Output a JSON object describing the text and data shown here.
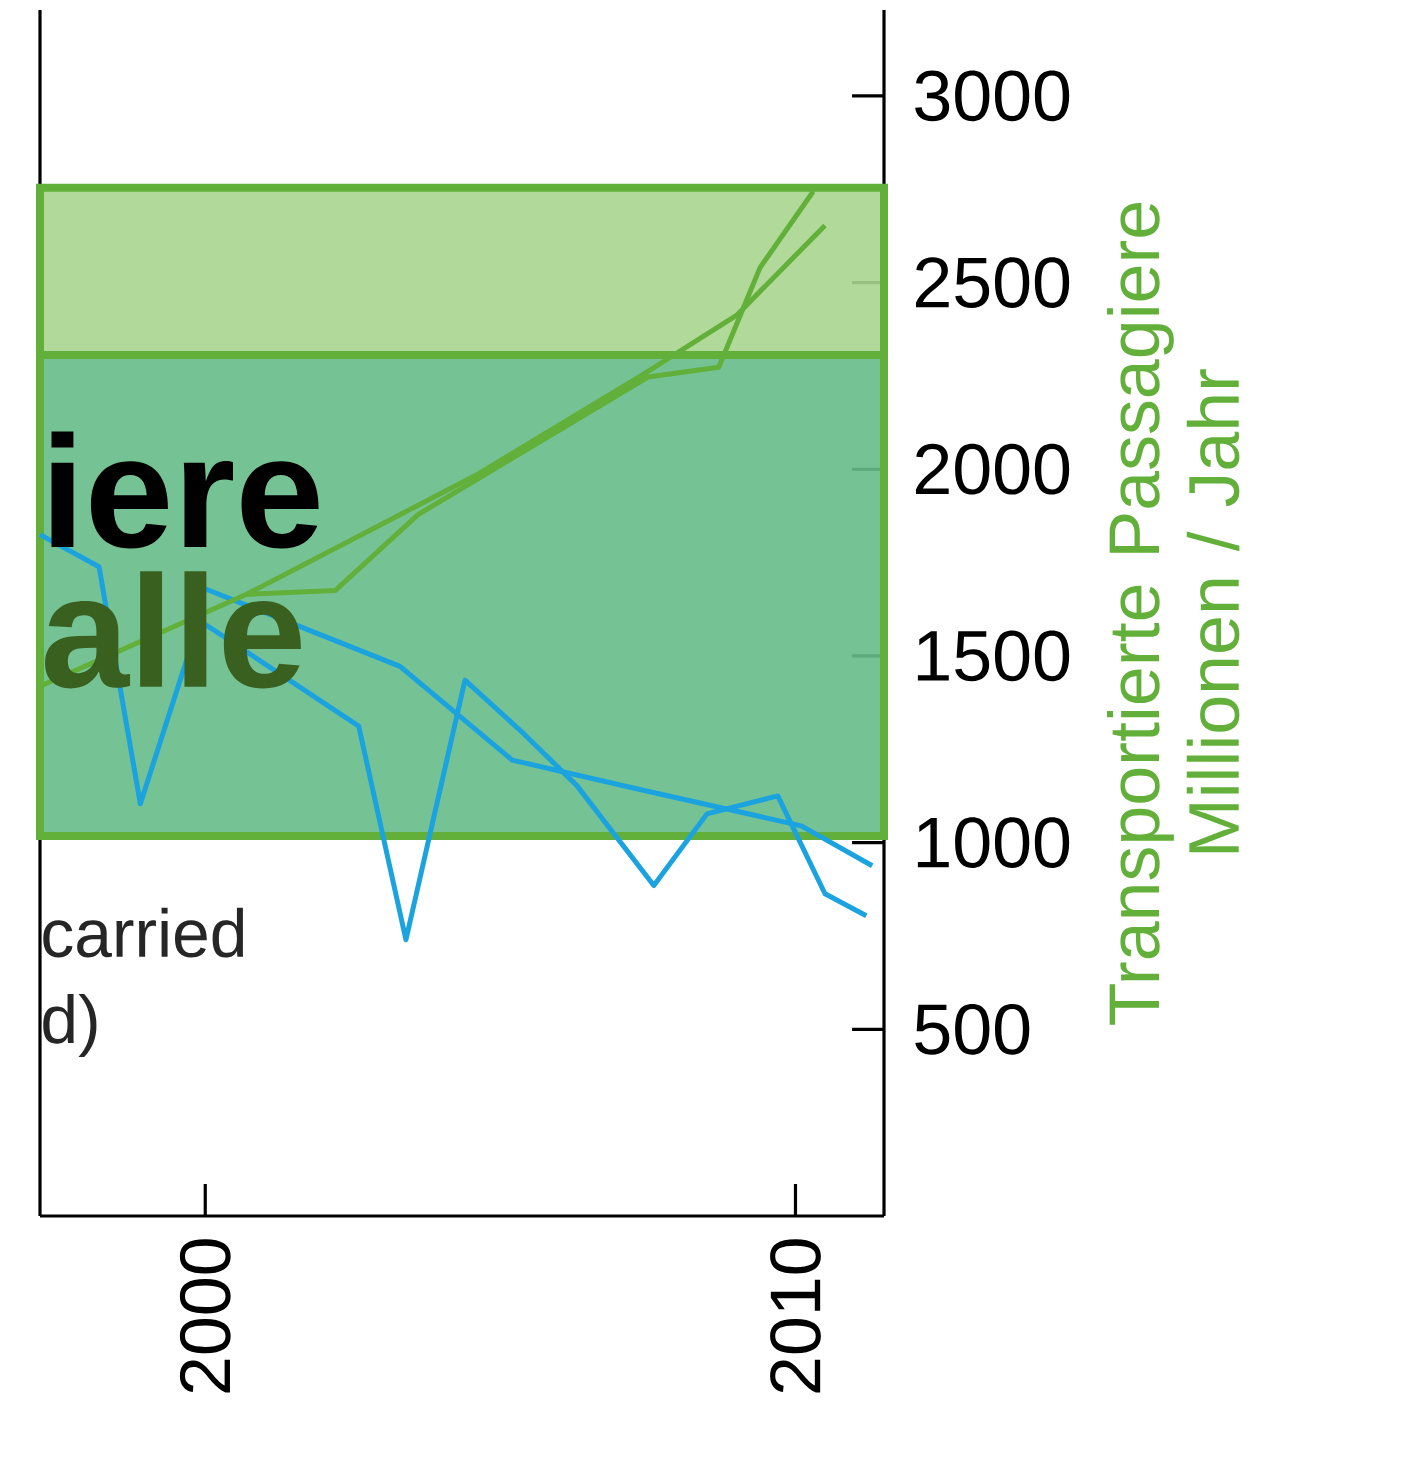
{
  "chart_data": {
    "type": "line",
    "y2label": "Transportierte Passagiere Millionen / Jahr",
    "xlim": [
      1997.2,
      2011.5
    ],
    "xticks": [
      2000,
      2010
    ],
    "y2lim": [
      0,
      3230
    ],
    "y2ticks": [
      500,
      1000,
      1500,
      2000,
      2500,
      3000
    ],
    "series": [
      {
        "color": "#1ba3e0",
        "axis": "y2",
        "x": [
          1997.2,
          1998.2,
          1998.9,
          1999.9,
          2002.6,
          2003.4,
          2004.4,
          2005.4,
          2006.3,
          2007.6,
          2008.5,
          2009.7,
          2010.5,
          2011.2
        ],
        "values": [
          1825,
          1739,
          1104,
          1595,
          1312,
          740,
          1435,
          1291,
          1152,
          885,
          1077,
          1125,
          863,
          804
        ]
      },
      {
        "color": "#1ba3e0",
        "axis": "y2",
        "x": [
          1999.9,
          2003.3,
          2005.2,
          2007.4,
          2010.1,
          2011.3
        ],
        "values": [
          1686,
          1472,
          1221,
          1141,
          1045,
          938
        ]
      },
      {
        "color": "#62b03a",
        "axis": "y2",
        "x": [
          2000.7,
          2002.2,
          2003.6,
          2007.5,
          2008.7,
          2009.4,
          2010.3
        ],
        "values": [
          1665,
          1675,
          1878,
          2247,
          2273,
          2540,
          2744
        ]
      },
      {
        "color": "#62b03a",
        "axis": "y2",
        "x": [
          1997.2,
          2000.7,
          2004.6,
          2007.4,
          2009.0,
          2010.5
        ],
        "values": [
          1419,
          1665,
          1985,
          2252,
          2412,
          2653
        ]
      }
    ],
    "bands": [
      {
        "axis": "y2",
        "from": 2306,
        "to": 2754,
        "color": "#a9d58e"
      },
      {
        "axis": "y2",
        "from": 1018,
        "to": 2306,
        "color": "#66bb88"
      }
    ],
    "annotations": [
      "alle",
      "iere",
      "carried",
      "d)"
    ],
    "grid": false,
    "marker": "none",
    "line_style": "solid"
  }
}
